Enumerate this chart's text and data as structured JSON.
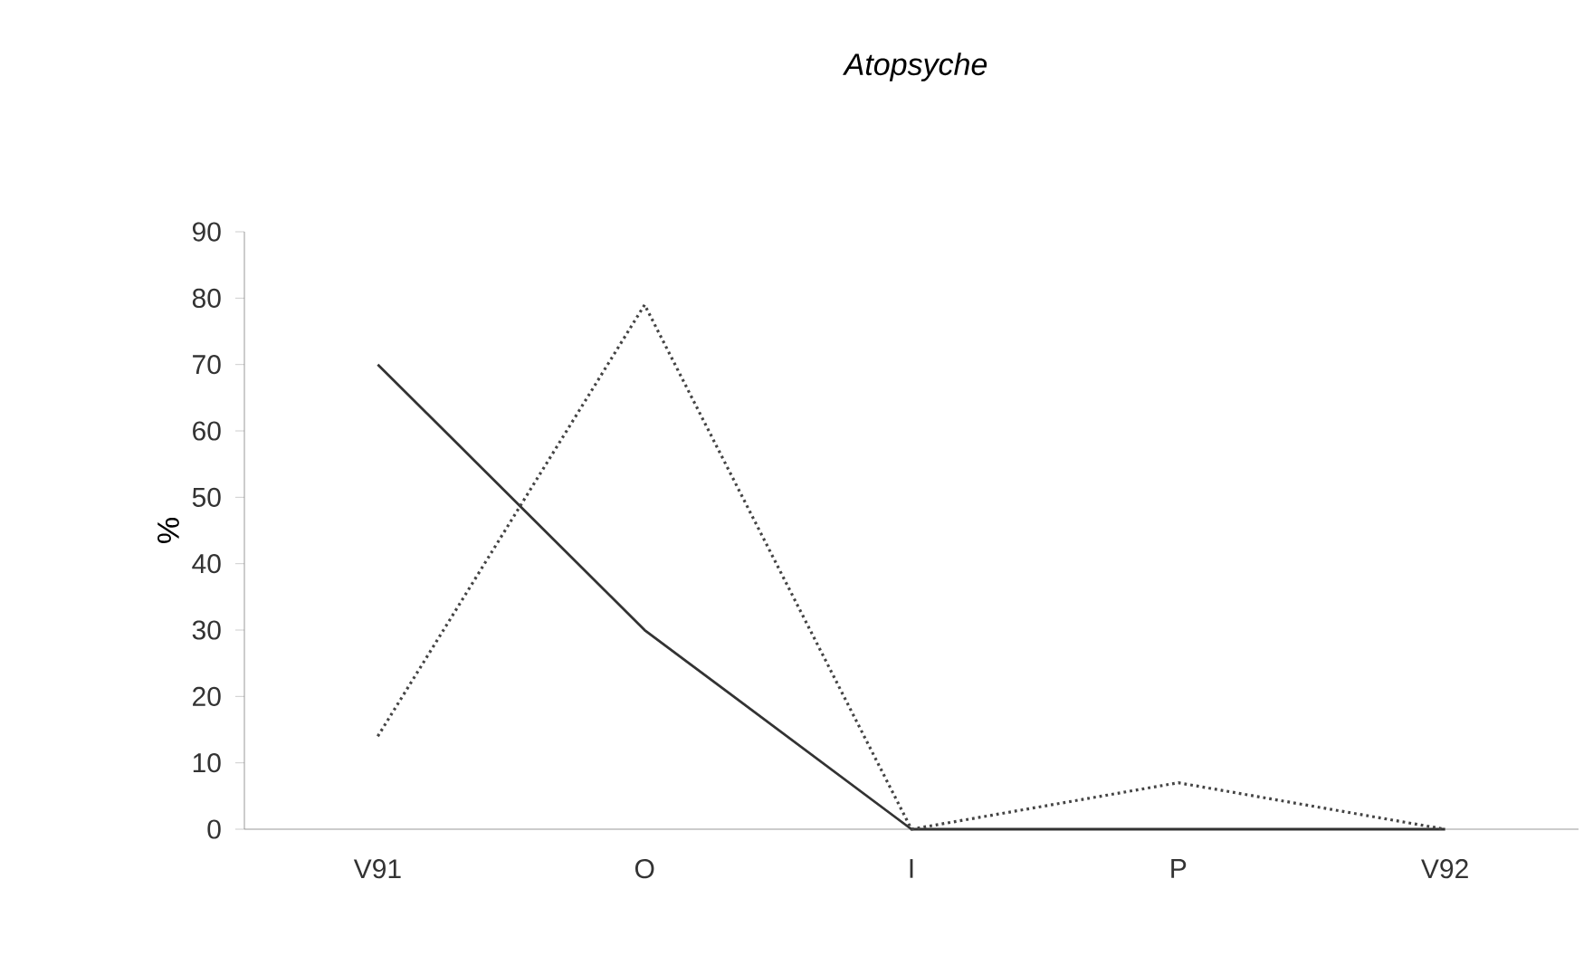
{
  "chart_data": {
    "type": "line",
    "title": "Atopsyche",
    "ylabel": "%",
    "categories": [
      "V91",
      "O",
      "I",
      "P",
      "V92"
    ],
    "series": [
      {
        "color": "#333333",
        "line_style": "solid",
        "values": [
          70,
          30,
          0,
          0,
          0
        ]
      },
      {
        "color": "#444444",
        "line_style": "dotted",
        "values": [
          14,
          79,
          0,
          7,
          0
        ]
      }
    ],
    "ylim": [
      0,
      90
    ],
    "yticks": [
      0,
      10,
      20,
      30,
      40,
      50,
      60,
      70,
      80,
      90
    ],
    "grid": false,
    "marker": "none"
  }
}
